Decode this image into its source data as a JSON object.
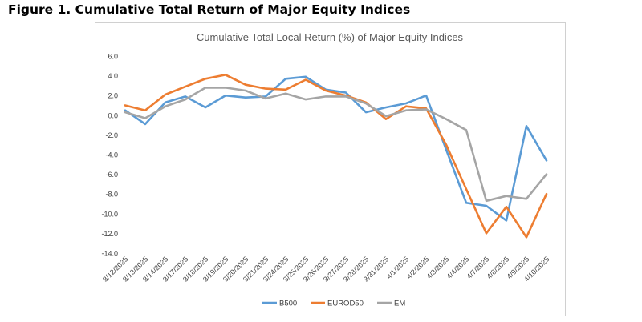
{
  "figure_caption": "Figure 1. Cumulative Total Return of Major Equity Indices",
  "chart_data": {
    "type": "line",
    "title": "Cumulative Total Local Return (%) of Major Equity Indices",
    "xlabel": "",
    "ylabel": "",
    "ylim": [
      -14,
      6
    ],
    "yticks": [
      6,
      4,
      2,
      0,
      -2,
      -4,
      -6,
      -8,
      -10,
      -12,
      -14
    ],
    "ytick_labels": [
      "6.0",
      "4.0",
      "2.0",
      "0.0",
      "-2.0",
      "-4.0",
      "-6.0",
      "-8.0",
      "-10.0",
      "-12.0",
      "-14.0"
    ],
    "grid": false,
    "legend_position": "bottom",
    "categories": [
      "3/12/2025",
      "3/13/2025",
      "3/14/2025",
      "3/17/2025",
      "3/18/2025",
      "3/19/2025",
      "3/20/2025",
      "3/21/2025",
      "3/24/2025",
      "3/25/2025",
      "3/26/2025",
      "3/27/2025",
      "3/28/2025",
      "3/31/2025",
      "4/1/2025",
      "4/2/2025",
      "4/3/2025",
      "4/4/2025",
      "4/7/2025",
      "4/8/2025",
      "4/9/2025",
      "4/10/2025"
    ],
    "series": [
      {
        "name": "B500",
        "color": "#5b9bd5",
        "values": [
          0.5,
          -0.9,
          1.3,
          1.9,
          0.8,
          2.0,
          1.8,
          1.9,
          3.7,
          3.9,
          2.6,
          2.3,
          0.3,
          0.8,
          1.2,
          2.0,
          -3.5,
          -8.9,
          -9.2,
          -10.7,
          -1.1,
          -4.6
        ]
      },
      {
        "name": "EUROD50",
        "color": "#ed7d31",
        "values": [
          1.0,
          0.5,
          2.1,
          2.9,
          3.7,
          4.1,
          3.1,
          2.7,
          2.6,
          3.6,
          2.5,
          2.0,
          1.3,
          -0.4,
          0.9,
          0.7,
          -3.0,
          -7.5,
          -12.0,
          -9.3,
          -12.4,
          -8.0
        ]
      },
      {
        "name": "EM",
        "color": "#a5a5a5",
        "values": [
          0.3,
          -0.3,
          0.9,
          1.6,
          2.8,
          2.8,
          2.5,
          1.7,
          2.2,
          1.6,
          1.9,
          1.9,
          1.2,
          -0.1,
          0.5,
          0.6,
          -0.4,
          -1.5,
          -8.7,
          -8.2,
          -8.5,
          -6.0
        ]
      }
    ]
  }
}
